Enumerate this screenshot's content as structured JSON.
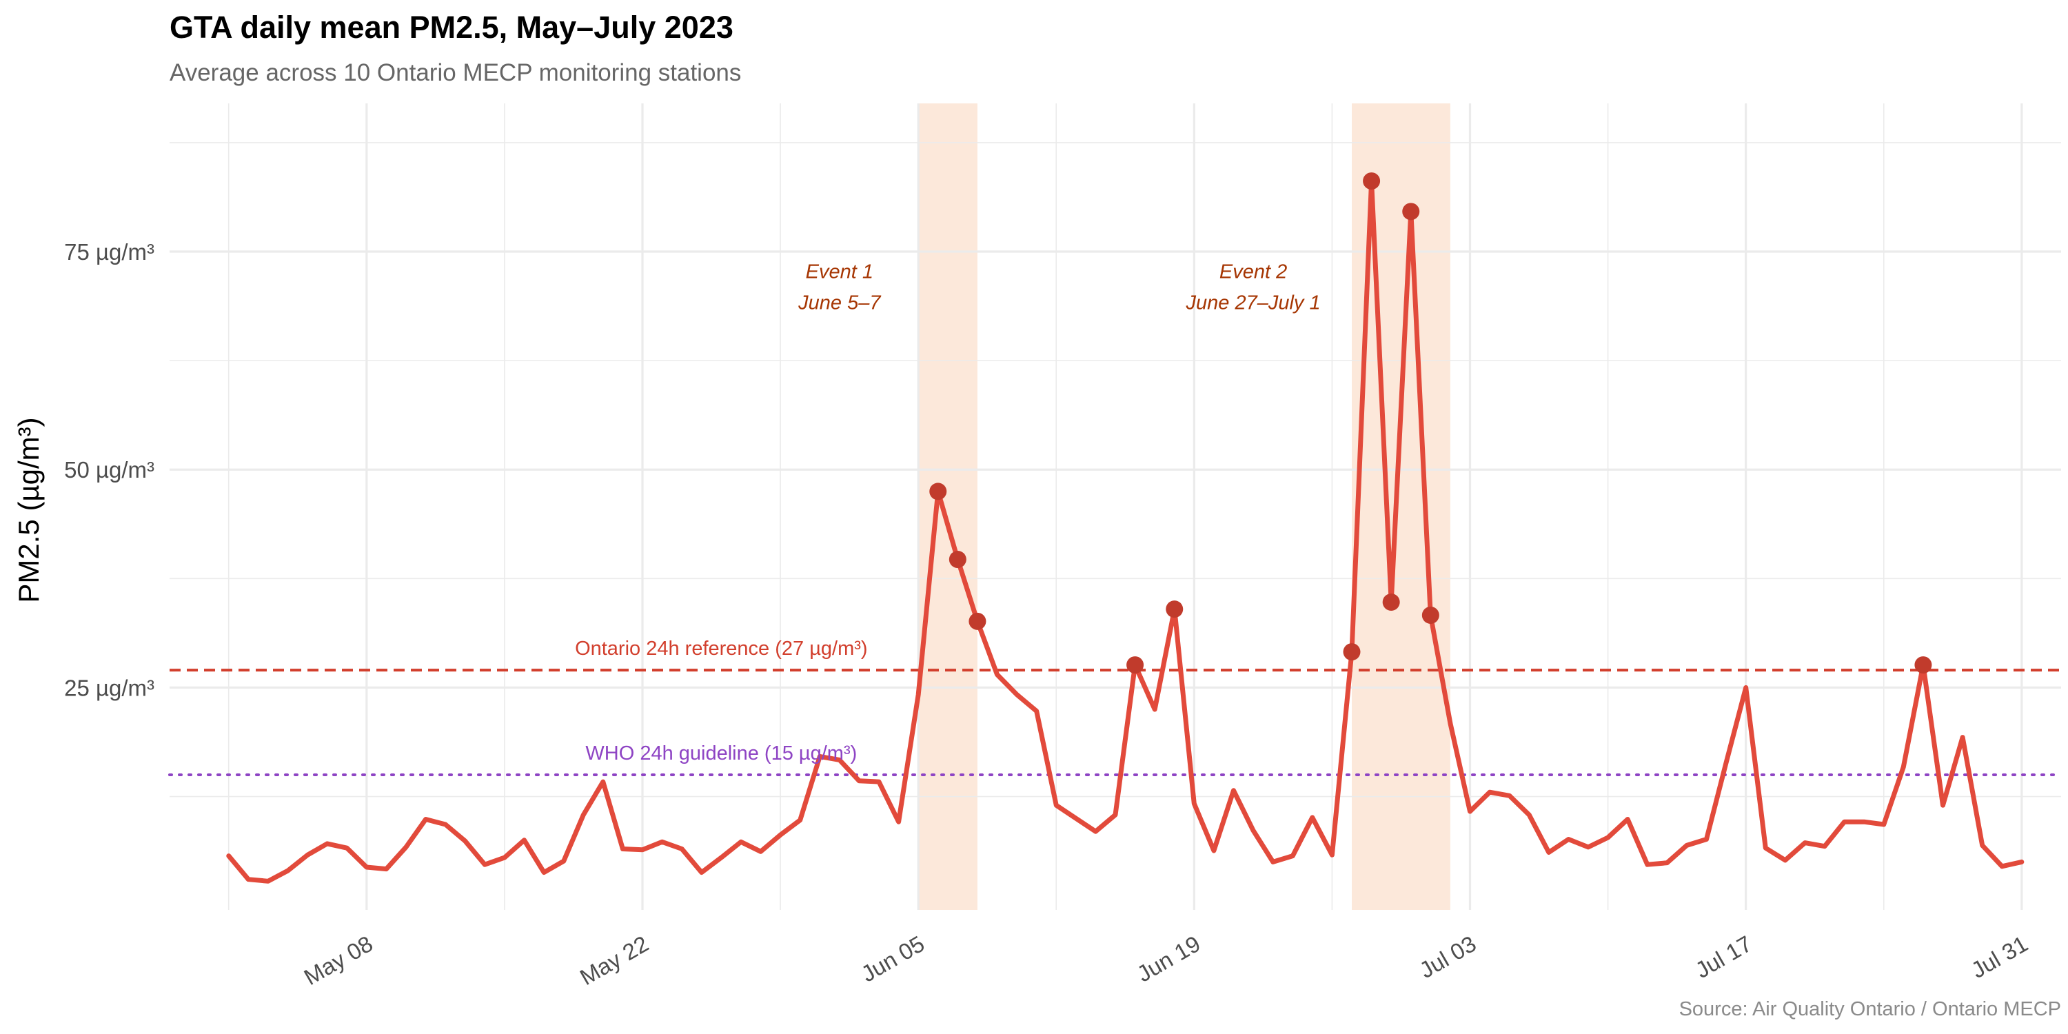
{
  "chart_data": {
    "type": "line",
    "title": "GTA daily mean PM2.5, May–July 2023",
    "subtitle": "Average across 10 Ontario MECP monitoring stations",
    "caption": "Source: Air Quality Ontario / Ontario MECP",
    "ylabel": "PM2.5 (µg/m³)",
    "xlabel": "",
    "y_ticks": [
      25,
      50,
      75
    ],
    "y_tick_labels": [
      "25 µg/m³",
      "50 µg/m³",
      "75 µg/m³"
    ],
    "ylim": [
      -0.5,
      92
    ],
    "xlim": [
      "2023-04-28",
      "2023-08-02"
    ],
    "x_ticks": [
      "2023-05-08",
      "2023-05-22",
      "2023-06-05",
      "2023-06-19",
      "2023-07-03",
      "2023-07-17",
      "2023-07-31"
    ],
    "x_tick_labels": [
      "May 08",
      "May 22",
      "Jun 05",
      "Jun 19",
      "Jul 03",
      "Jul 17",
      "Jul 31"
    ],
    "grid": true,
    "series": [
      {
        "color": "#e24a3b",
        "x": [
          "2023-05-01",
          "2023-05-02",
          "2023-05-03",
          "2023-05-04",
          "2023-05-05",
          "2023-05-06",
          "2023-05-07",
          "2023-05-08",
          "2023-05-09",
          "2023-05-10",
          "2023-05-11",
          "2023-05-12",
          "2023-05-13",
          "2023-05-14",
          "2023-05-15",
          "2023-05-16",
          "2023-05-17",
          "2023-05-18",
          "2023-05-19",
          "2023-05-20",
          "2023-05-21",
          "2023-05-22",
          "2023-05-23",
          "2023-05-24",
          "2023-05-25",
          "2023-05-26",
          "2023-05-27",
          "2023-05-28",
          "2023-05-29",
          "2023-05-30",
          "2023-05-31",
          "2023-06-01",
          "2023-06-02",
          "2023-06-03",
          "2023-06-04",
          "2023-06-05",
          "2023-06-06",
          "2023-06-07",
          "2023-06-08",
          "2023-06-09",
          "2023-06-10",
          "2023-06-11",
          "2023-06-12",
          "2023-06-13",
          "2023-06-14",
          "2023-06-15",
          "2023-06-16",
          "2023-06-17",
          "2023-06-18",
          "2023-06-19",
          "2023-06-20",
          "2023-06-21",
          "2023-06-22",
          "2023-06-23",
          "2023-06-24",
          "2023-06-25",
          "2023-06-26",
          "2023-06-27",
          "2023-06-28",
          "2023-06-29",
          "2023-06-30",
          "2023-07-01",
          "2023-07-02",
          "2023-07-03",
          "2023-07-04",
          "2023-07-05",
          "2023-07-06",
          "2023-07-07",
          "2023-07-08",
          "2023-07-09",
          "2023-07-10",
          "2023-07-11",
          "2023-07-12",
          "2023-07-13",
          "2023-07-14",
          "2023-07-15",
          "2023-07-16",
          "2023-07-17",
          "2023-07-18",
          "2023-07-19",
          "2023-07-20",
          "2023-07-21",
          "2023-07-22",
          "2023-07-23",
          "2023-07-24",
          "2023-07-25",
          "2023-07-26",
          "2023-07-27",
          "2023-07-28",
          "2023-07-29",
          "2023-07-30",
          "2023-07-31"
        ],
        "values": [
          5.7,
          3.0,
          2.8,
          4.0,
          5.8,
          7.1,
          6.6,
          4.4,
          4.2,
          6.7,
          9.9,
          9.3,
          7.4,
          4.7,
          5.5,
          7.5,
          3.8,
          5.1,
          10.4,
          14.2,
          6.5,
          6.4,
          7.3,
          6.5,
          3.8,
          5.5,
          7.3,
          6.2,
          8.1,
          9.8,
          17.1,
          16.7,
          14.3,
          14.2,
          9.6,
          24.2,
          47.5,
          39.7,
          32.6,
          26.5,
          24.2,
          22.3,
          11.5,
          10.0,
          8.5,
          10.4,
          27.6,
          22.5,
          34.0,
          11.7,
          6.3,
          13.2,
          8.6,
          5.0,
          5.7,
          10.1,
          5.8,
          29.1,
          83.1,
          34.8,
          79.6,
          33.3,
          20.9,
          10.8,
          13.0,
          12.6,
          10.4,
          6.1,
          7.6,
          6.7,
          7.8,
          9.9,
          4.7,
          4.9,
          6.9,
          7.6,
          16.4,
          25.0,
          6.6,
          5.2,
          7.2,
          6.8,
          9.6,
          9.6,
          9.3,
          15.9,
          27.6,
          11.5,
          19.3,
          6.9,
          4.5,
          5.0
        ]
      }
    ],
    "highlighted_points": {
      "x": [
        "2023-06-06",
        "2023-06-07",
        "2023-06-08",
        "2023-06-16",
        "2023-06-18",
        "2023-06-27",
        "2023-06-28",
        "2023-06-29",
        "2023-06-30",
        "2023-07-01",
        "2023-07-26"
      ],
      "values": [
        47.5,
        39.7,
        32.6,
        27.6,
        34.0,
        29.1,
        83.1,
        34.8,
        79.6,
        33.3,
        27.6
      ],
      "color": "#c13b2c"
    },
    "shaded_events": [
      {
        "start": "2023-06-05",
        "end": "2023-06-08",
        "label_line1": "Event 1",
        "label_line2": "June 5–7",
        "label_x": "2023-06-01",
        "label_y": 71
      },
      {
        "start": "2023-06-27",
        "end": "2023-07-02",
        "label_line1": "Event 2",
        "label_line2": "June 27–July 1",
        "label_x": "2023-06-22",
        "label_y": 71
      }
    ],
    "event_fill": "#fce8da",
    "event_label_color": "#a63603",
    "reference_lines": [
      {
        "value": 27,
        "label": "Ontario 24h reference (27 µg/m³)",
        "color": "#d23f2d",
        "style": "dashed",
        "label_x": "2023-05-26"
      },
      {
        "value": 15,
        "label": "WHO 24h guideline (15 µg/m³)",
        "color": "#8e44c4",
        "style": "dotted",
        "label_x": "2023-05-26"
      }
    ]
  }
}
